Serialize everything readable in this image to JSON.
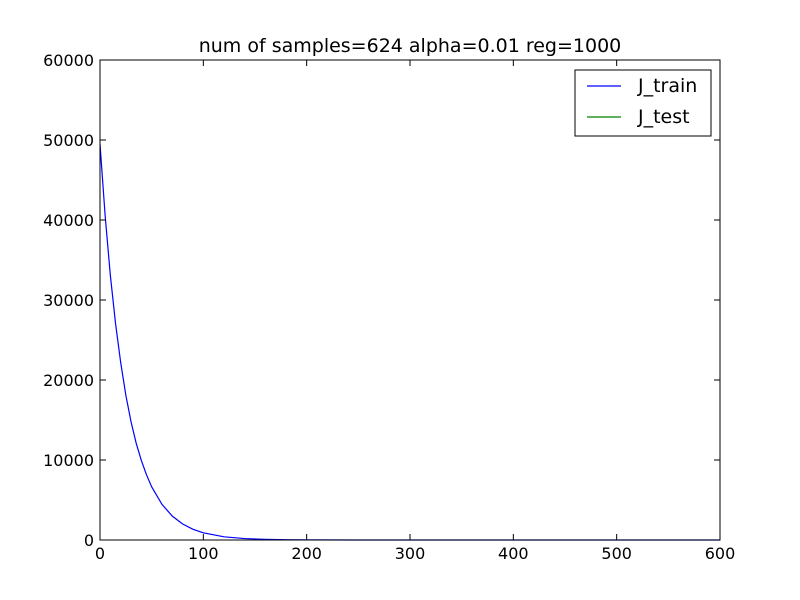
{
  "chart_data": {
    "type": "line",
    "title": "num of samples=624   alpha=0.01   reg=1000",
    "xlabel": "",
    "ylabel": "",
    "xlim": [
      0,
      600
    ],
    "ylim": [
      0,
      60000
    ],
    "xticks": [
      0,
      100,
      200,
      300,
      400,
      500,
      600
    ],
    "yticks": [
      0,
      10000,
      20000,
      30000,
      40000,
      50000,
      60000
    ],
    "grid": false,
    "legend_position": "top-right",
    "series": [
      {
        "name": "J_train",
        "color": "#0000ff",
        "x": [
          0,
          5,
          10,
          15,
          20,
          25,
          30,
          35,
          40,
          45,
          50,
          60,
          70,
          80,
          90,
          100,
          120,
          140,
          160,
          180,
          200,
          250,
          300,
          350,
          400,
          450,
          500,
          550,
          600
        ],
        "y": [
          49500,
          40500,
          33100,
          27100,
          22200,
          18100,
          14800,
          12100,
          9950,
          8150,
          6650,
          4450,
          2980,
          2000,
          1340,
          900,
          400,
          180,
          80,
          36,
          16,
          3,
          1,
          0,
          0,
          0,
          0,
          0,
          0
        ]
      },
      {
        "name": "J_test",
        "color": "#008000",
        "x": [],
        "y": []
      }
    ]
  }
}
